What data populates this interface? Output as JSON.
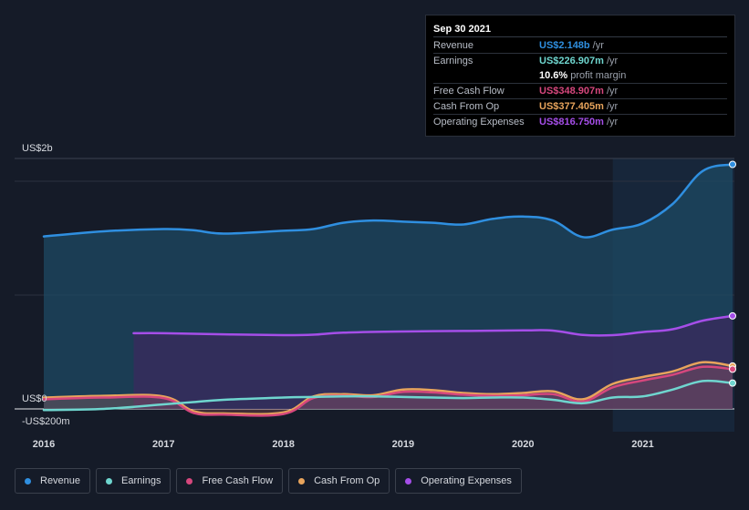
{
  "chart_data": {
    "type": "area",
    "y_axis_labels": {
      "top": "US$2b",
      "zero": "US$0",
      "bottom": "-US$200m"
    },
    "ylim": [
      -200,
      2200
    ],
    "xlim": [
      2016.0,
      2021.75
    ],
    "x_ticks": [
      {
        "value": 2016,
        "label": "2016"
      },
      {
        "value": 2017,
        "label": "2017"
      },
      {
        "value": 2018,
        "label": "2018"
      },
      {
        "value": 2019,
        "label": "2019"
      },
      {
        "value": 2020,
        "label": "2020"
      },
      {
        "value": 2021,
        "label": "2021"
      }
    ],
    "forecast_start": 2020.75,
    "series": [
      {
        "name": "Revenue",
        "color": "#2f8fe0",
        "fill": "#1e4a63",
        "x": [
          2016.0,
          2016.5,
          2017.0,
          2017.25,
          2017.5,
          2018.0,
          2018.25,
          2018.5,
          2018.75,
          2019.0,
          2019.25,
          2019.5,
          2019.75,
          2020.0,
          2020.25,
          2020.5,
          2020.75,
          2021.0,
          2021.25,
          2021.5,
          2021.75
        ],
        "values": [
          1515,
          1560,
          1580,
          1570,
          1540,
          1565,
          1580,
          1635,
          1655,
          1645,
          1635,
          1620,
          1670,
          1690,
          1655,
          1510,
          1575,
          1630,
          1800,
          2090,
          2148
        ]
      },
      {
        "name": "Operating Expenses",
        "color": "#a54ee8",
        "fill": "#3b2a5e",
        "x": [
          2016.75,
          2017.0,
          2017.5,
          2018.0,
          2018.25,
          2018.5,
          2019.0,
          2019.5,
          2020.0,
          2020.25,
          2020.5,
          2020.75,
          2021.0,
          2021.25,
          2021.5,
          2021.75
        ],
        "values": [
          665,
          665,
          655,
          648,
          652,
          670,
          680,
          685,
          690,
          688,
          650,
          648,
          675,
          700,
          775,
          817
        ]
      },
      {
        "name": "Cash From Op",
        "color": "#e8a45c",
        "x": [
          2016.0,
          2016.5,
          2017.0,
          2017.25,
          2017.5,
          2018.0,
          2018.25,
          2018.5,
          2018.75,
          2019.0,
          2019.25,
          2019.5,
          2019.75,
          2020.0,
          2020.25,
          2020.5,
          2020.75,
          2021.0,
          2021.25,
          2021.5,
          2021.75
        ],
        "values": [
          100,
          115,
          110,
          -20,
          -40,
          -30,
          110,
          130,
          120,
          170,
          165,
          140,
          130,
          140,
          155,
          85,
          220,
          280,
          330,
          410,
          377
        ]
      },
      {
        "name": "Free Cash Flow",
        "color": "#d6477d",
        "x": [
          2016.0,
          2016.5,
          2017.0,
          2017.25,
          2017.5,
          2018.0,
          2018.25,
          2018.5,
          2018.75,
          2019.0,
          2019.25,
          2019.5,
          2019.75,
          2020.0,
          2020.25,
          2020.5,
          2020.75,
          2021.0,
          2021.25,
          2021.5,
          2021.75
        ],
        "values": [
          85,
          100,
          95,
          -35,
          -50,
          -45,
          95,
          115,
          105,
          150,
          145,
          125,
          115,
          120,
          130,
          65,
          190,
          250,
          300,
          370,
          349
        ]
      },
      {
        "name": "Earnings",
        "color": "#6fd6cf",
        "x": [
          2016.0,
          2016.5,
          2017.0,
          2017.25,
          2017.5,
          2018.0,
          2018.25,
          2018.5,
          2018.75,
          2019.0,
          2019.25,
          2019.5,
          2019.75,
          2020.0,
          2020.25,
          2020.5,
          2020.75,
          2021.0,
          2021.25,
          2021.5,
          2021.75
        ],
        "values": [
          -10,
          0,
          40,
          60,
          80,
          100,
          105,
          110,
          110,
          105,
          100,
          95,
          100,
          100,
          80,
          50,
          100,
          110,
          170,
          245,
          227
        ]
      }
    ]
  },
  "tooltip": {
    "date": "Sep 30 2021",
    "rows": [
      {
        "label": "Revenue",
        "value": "US$2.148b",
        "unit": "/yr",
        "color": "#2f8fe0"
      },
      {
        "label": "Earnings",
        "value": "US$226.907m",
        "unit": "/yr",
        "color": "#6fd6cf"
      },
      {
        "label": "",
        "value": "10.6%",
        "unit": "profit margin",
        "color": "#ffffff"
      },
      {
        "label": "Free Cash Flow",
        "value": "US$348.907m",
        "unit": "/yr",
        "color": "#d6477d"
      },
      {
        "label": "Cash From Op",
        "value": "US$377.405m",
        "unit": "/yr",
        "color": "#e8a45c"
      },
      {
        "label": "Operating Expenses",
        "value": "US$816.750m",
        "unit": "/yr",
        "color": "#a54ee8"
      }
    ]
  },
  "legend": [
    {
      "label": "Revenue",
      "color": "#2f8fe0"
    },
    {
      "label": "Earnings",
      "color": "#6fd6cf"
    },
    {
      "label": "Free Cash Flow",
      "color": "#d6477d"
    },
    {
      "label": "Cash From Op",
      "color": "#e8a45c"
    },
    {
      "label": "Operating Expenses",
      "color": "#a54ee8"
    }
  ]
}
